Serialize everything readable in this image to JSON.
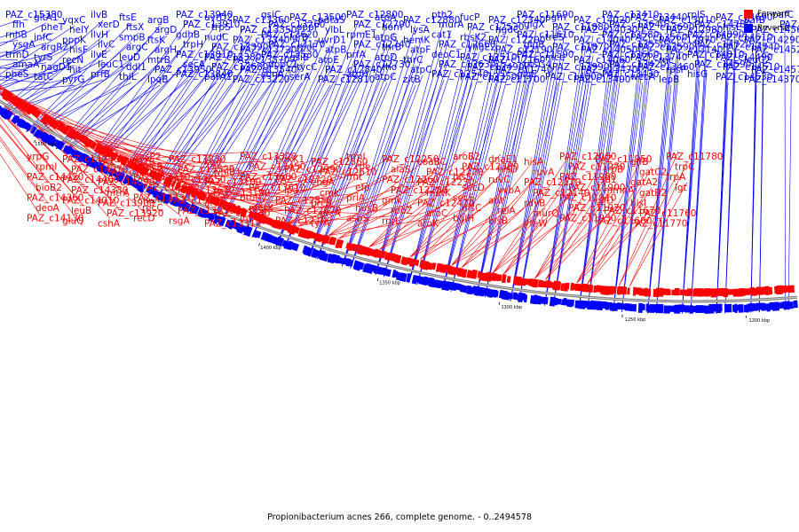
{
  "caption": "Propionibacterium acnes 266, complete genome. - 0..2494578",
  "legend": [
    {
      "label": "Forward",
      "color": "#ff0000"
    },
    {
      "label": "Reverse",
      "color": "#0000ff"
    }
  ],
  "ticks": [
    "1550 kbp",
    "1500 kbp",
    "1450 kbp",
    "1400 kbp",
    "1350 kbp",
    "1300 kbp",
    "1250 kbp",
    "1200 kbp"
  ],
  "reverse_labels": [
    "PAZ_c15380",
    "ffh",
    "rnhB",
    "ysgA",
    "trmD",
    "amaA",
    "pheS",
    "gltA1",
    "pheT",
    "infC",
    "argR2",
    "tyrS",
    "nagD1",
    "tatC",
    "yqxC",
    "helY",
    "pppK",
    "hisF",
    "recN",
    "hit",
    "pyrG",
    "ilvB",
    "xerD",
    "ilvH",
    "ilvC",
    "ilvE",
    "leuC1",
    "prfB",
    "ftsE",
    "ftsX",
    "smpB",
    "argC",
    "leuD",
    "ddl1",
    "thiL",
    "argB",
    "argD",
    "ftsK",
    "argH",
    "mtrB",
    "PAZ_c13950",
    "lpqB",
    "PAZ_c13940",
    "PAZ_c13910",
    "gdhB",
    "trpH",
    "PAZ_c13810",
    "secA",
    "PAZ_c13840",
    "uvrD2",
    "trpS",
    "nudC",
    "PAZ_c13390",
    "PAZ_c13380",
    "PAZ_c13680",
    "parA1",
    "PAZ_c13360",
    "PAZ_c13350",
    "PAZ_c13340",
    "PAZ_c13720",
    "PAZ_c13570",
    "PAZ_c13540",
    "PAZ_c13220",
    "gsiC",
    "PAZ_c13260",
    "PAZ_c13620",
    "PAZ_c13170",
    "PAZ_c13530",
    "dppC1",
    "sbnA",
    "PAZ_c13500",
    "oppF",
    "lgrB",
    "rpoE",
    "gsiB",
    "tycC",
    "serA",
    "pdtaS",
    "ylbL",
    "uvrD1",
    "atpB",
    "atpE",
    "PAZ_c12840",
    "PAZ_c12810",
    "PAZ_c12800",
    "PAZ_c12790",
    "rpmE1",
    "PAZ_c12740",
    "prfA",
    "PAZ_c12730",
    "atpH",
    "atpA",
    "hom",
    "atpG",
    "thrB",
    "atpD",
    "rho",
    "atpC",
    "PAZ_c12880",
    "lysA",
    "hemK",
    "atpF",
    "thrC",
    "atpC",
    "zitB",
    "pth2",
    "murA",
    "cat1",
    "PAZ_c12660",
    "deoC1",
    "PAZ_c12630",
    "PAZ_c12540",
    "fucP",
    "PAZ_c12530",
    "rbsK2",
    "yhgE2",
    "PAZ_c12510",
    "PAZ_c12490",
    "PAZ_c12350",
    "PAZ_c12340",
    "hgdC",
    "PAZ_c12200",
    "PAZ_c12190",
    "PAZ_c12160",
    "PAZ_c11740",
    "PAZ_c11700",
    "PAZ_c11690",
    "glgX",
    "PAZ_c11610",
    "glgB",
    "PAZ_c11590",
    "ptsG4",
    "glgE",
    "pgm",
    "PAZ_c11880",
    "treS",
    "PAZ_c11870",
    "mce",
    "PAZ_c13990",
    "PAZ_c14000",
    "PAZ_c14020",
    "PAZ_c14030",
    "PAZ_c14040",
    "PAZ_c14050",
    "PAZ_c14060",
    "PAZ_c13470",
    "PAZ_c13400",
    "PAZ_c13410",
    "PAZ_c13640",
    "PAZ_c13580",
    "PAZ_c13550",
    "PAZ_c13660",
    "PAZ_c13420",
    "PAZ_c13430",
    "PAZ_c13440",
    "PAZ_c13690",
    "PAZ_c13560",
    "PAZ_c13590",
    "PAZ_c13740",
    "PAZ_c13460",
    "wecA",
    "PAZ_c13010",
    "PAZ_c12980",
    "PAZ_c12970",
    "PAZ_c13140",
    "rnc",
    "rpsP",
    "lepB",
    "rplS",
    "PAZ_c14780",
    "PAZ_c14890",
    "PAZ_c14720",
    "PAZ_c14810",
    "PAZ_c14590",
    "hisG",
    "PAZ_c14690",
    "hisE",
    "PAZ_c14610",
    "PAZ_c14740",
    "PAZ_c14490",
    "PAZ_c14510",
    "PAZ_c14630",
    "pafB",
    "PAZ_c14560",
    "PAZ_c14290",
    "PAZ_c14520",
    "leuC2",
    "PAZ_c14570",
    "PAZ_c14370",
    "pafC",
    "PAZ_c14120"
  ],
  "forward_labels": [
    "yrpG",
    "rpmI",
    "PAZ_c14420",
    "bioB2",
    "PAZ_c14360",
    "deoA",
    "PAZ_c14130",
    "PAZ_c14240",
    "PAZ_c14270",
    "PAZ_c14400",
    "PAZ_c14330",
    "PAZ_c14010",
    "leuB",
    "gluQ",
    "PAZ_c14070",
    "PAZ_c14080",
    "PAZ_c14090",
    "mtrA",
    "PAZ_c13900",
    "PAZ_c13920",
    "cshA",
    "ansP2",
    "recB",
    "PAZ_c13710",
    "PAZ_c13820",
    "PAZ_c13730",
    "recC",
    "recD",
    "PAZ_c13830",
    "PAZ_c13520",
    "PAZ_c13650",
    "PAZ_c13670",
    "PAZ_c13330",
    "PAZ_c13230",
    "rsgA",
    "kgd",
    "whiB1",
    "PAZ_c13100",
    "PAZ_c13190",
    "aroA",
    "PAZ_c13130",
    "PAZ_c13310",
    "PAZ_c13320",
    "PAZ_c13450",
    "PAZ_c13600",
    "PAZ_c13610",
    "btuR2",
    "metX",
    "lnt",
    "pdxK1",
    "PAZ_c12990",
    "PAZ_c12720",
    "lpd",
    "PAZ_c12850",
    "PAZ_c12670",
    "PAZ_c12700",
    "PAZ_c12860",
    "PAZ_c12610",
    "engA",
    "cmk",
    "prcB",
    "prcA",
    "tyrA",
    "trmI",
    "rpe",
    "fmt",
    "efp",
    "priA",
    "nusB",
    "aspS",
    "PAZ_c12250",
    "alaS",
    "PAZ_c12260",
    "PAZ_c12280",
    "gmk",
    "rpoZ",
    "rnrL",
    "coaBC",
    "PAZ_c12220",
    "PAZ_c12230",
    "metK",
    "PAZ_c12470",
    "aroC",
    "aroK",
    "aroB2",
    "PAZ_c12380",
    "hisS",
    "secD",
    "secF",
    "hisC",
    "bglH",
    "dnaE1",
    "hisD",
    "ruvC",
    "yvbA",
    "apt",
    "relA",
    "hisB",
    "hisA",
    "ruvA",
    "PAZ_c12170",
    "PAZ_c12140",
    "ruvB",
    "murQ",
    "yfeW",
    "PAZ_c12000",
    "PAZ_c11970",
    "PAZ_c11980",
    "PAZ_c11900",
    "PAZ_c11910",
    "PAZ_c11920",
    "PAZ_c11930",
    "PAZ_c11950",
    "trpB",
    "csd1",
    "mmnA",
    "glfD",
    "PAZ_c11670",
    "PAZ_c11680",
    "glfB",
    "gatC2",
    "gatA2",
    "gatB2",
    "hisI",
    "PAZ_c11760",
    "PAZ_c11770",
    "PAZ_c11780",
    "trpC",
    "trpA",
    "lgt"
  ],
  "icons": [
    "legend-swatch-forward",
    "legend-swatch-reverse"
  ]
}
